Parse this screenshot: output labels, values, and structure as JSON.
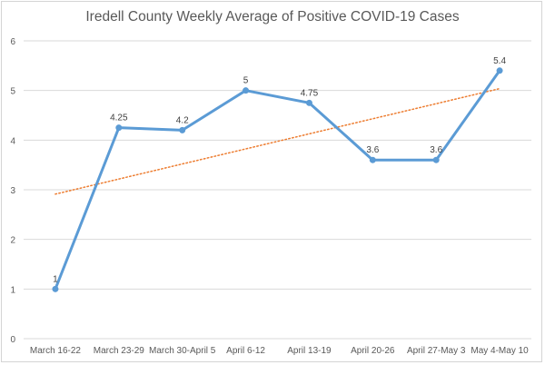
{
  "chart_data": {
    "type": "line",
    "title": "Iredell County Weekly Average of Positive COVID-19 Cases",
    "xlabel": "",
    "ylabel": "",
    "categories": [
      "March 16-22",
      "March 23-29",
      "March 30-April 5",
      "April 6-12",
      "April 13-19",
      "April 20-26",
      "April 27-May 3",
      "May 4-May 10"
    ],
    "series": [
      {
        "values": [
          1,
          4.25,
          4.2,
          5,
          4.75,
          3.6,
          3.6,
          5.4
        ],
        "data_labels": [
          "1",
          "4.25",
          "4.2",
          "5",
          "4.75",
          "3.6",
          "3.6",
          "5.4"
        ],
        "color": "#5b9bd5",
        "marker": "circle"
      }
    ],
    "trendline": {
      "kind": "linear",
      "style": "dotted",
      "color": "#ed7d31"
    },
    "ylim": [
      0,
      6
    ],
    "yticks": [
      "0",
      "1",
      "2",
      "3",
      "4",
      "5",
      "6"
    ],
    "grid": true,
    "legend": "none"
  }
}
